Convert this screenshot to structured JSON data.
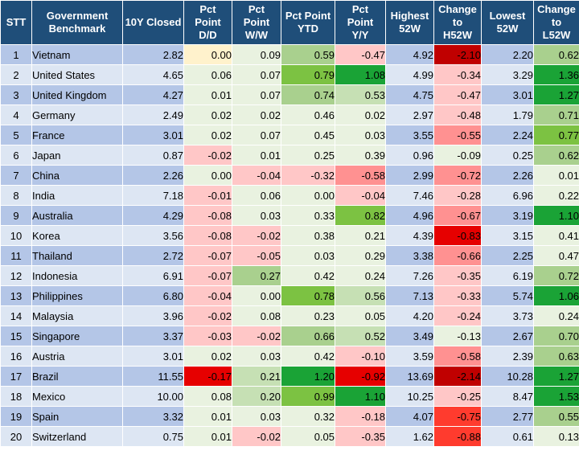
{
  "headers": {
    "stt": "STT",
    "benchmark_line1": "Government",
    "benchmark_line2": "Benchmark",
    "closed": "10Y Closed",
    "dd_line1": "Pct",
    "dd_line2": "Point",
    "dd_line3": "D/D",
    "ww_line1": "Pct",
    "ww_line2": "Point",
    "ww_line3": "W/W",
    "ytd_line1": "Pct Point",
    "ytd_line2": "YTD",
    "yy_line1": "Pct",
    "yy_line2": "Point",
    "yy_line3": "Y/Y",
    "h52_line1": "Highest",
    "h52_line2": "52W",
    "ch52_line1": "Change",
    "ch52_line2": "to",
    "ch52_line3": "H52W",
    "l52_line1": "Lowest",
    "l52_line2": "52W",
    "cl52_line1": "Change",
    "cl52_line2": "to",
    "cl52_line3": "L52W"
  },
  "rows": [
    {
      "stt": "1",
      "country": "Vietnam",
      "closed": "2.82",
      "dd": "0.00",
      "ww": "0.09",
      "ytd": "0.59",
      "yy": "-0.47",
      "h52": "4.92",
      "ch52": "-2.10",
      "l52": "2.20",
      "cl52": "0.62"
    },
    {
      "stt": "2",
      "country": "United States",
      "closed": "4.65",
      "dd": "0.06",
      "ww": "0.07",
      "ytd": "0.79",
      "yy": "1.08",
      "h52": "4.99",
      "ch52": "-0.34",
      "l52": "3.29",
      "cl52": "1.36"
    },
    {
      "stt": "3",
      "country": "United Kingdom",
      "closed": "4.27",
      "dd": "0.01",
      "ww": "0.07",
      "ytd": "0.74",
      "yy": "0.53",
      "h52": "4.75",
      "ch52": "-0.47",
      "l52": "3.01",
      "cl52": "1.27"
    },
    {
      "stt": "4",
      "country": "Germany",
      "closed": "2.49",
      "dd": "0.02",
      "ww": "0.02",
      "ytd": "0.46",
      "yy": "0.02",
      "h52": "2.97",
      "ch52": "-0.48",
      "l52": "1.79",
      "cl52": "0.71"
    },
    {
      "stt": "5",
      "country": "France",
      "closed": "3.01",
      "dd": "0.02",
      "ww": "0.07",
      "ytd": "0.45",
      "yy": "0.03",
      "h52": "3.55",
      "ch52": "-0.55",
      "l52": "2.24",
      "cl52": "0.77"
    },
    {
      "stt": "6",
      "country": "Japan",
      "closed": "0.87",
      "dd": "-0.02",
      "ww": "0.01",
      "ytd": "0.25",
      "yy": "0.39",
      "h52": "0.96",
      "ch52": "-0.09",
      "l52": "0.25",
      "cl52": "0.62"
    },
    {
      "stt": "7",
      "country": "China",
      "closed": "2.26",
      "dd": "0.00",
      "ww": "-0.04",
      "ytd": "-0.32",
      "yy": "-0.58",
      "h52": "2.99",
      "ch52": "-0.72",
      "l52": "2.26",
      "cl52": "0.01"
    },
    {
      "stt": "8",
      "country": "India",
      "closed": "7.18",
      "dd": "-0.01",
      "ww": "0.06",
      "ytd": "0.00",
      "yy": "-0.04",
      "h52": "7.46",
      "ch52": "-0.28",
      "l52": "6.96",
      "cl52": "0.22"
    },
    {
      "stt": "9",
      "country": "Australia",
      "closed": "4.29",
      "dd": "-0.08",
      "ww": "0.03",
      "ytd": "0.33",
      "yy": "0.82",
      "h52": "4.96",
      "ch52": "-0.67",
      "l52": "3.19",
      "cl52": "1.10"
    },
    {
      "stt": "10",
      "country": "Korea",
      "closed": "3.56",
      "dd": "-0.08",
      "ww": "-0.02",
      "ytd": "0.38",
      "yy": "0.21",
      "h52": "4.39",
      "ch52": "-0.83",
      "l52": "3.15",
      "cl52": "0.41"
    },
    {
      "stt": "11",
      "country": "Thailand",
      "closed": "2.72",
      "dd": "-0.07",
      "ww": "-0.05",
      "ytd": "0.03",
      "yy": "0.29",
      "h52": "3.38",
      "ch52": "-0.66",
      "l52": "2.25",
      "cl52": "0.47"
    },
    {
      "stt": "12",
      "country": "Indonesia",
      "closed": "6.91",
      "dd": "-0.07",
      "ww": "0.27",
      "ytd": "0.42",
      "yy": "0.24",
      "h52": "7.26",
      "ch52": "-0.35",
      "l52": "6.19",
      "cl52": "0.72"
    },
    {
      "stt": "13",
      "country": "Philippines",
      "closed": "6.80",
      "dd": "-0.04",
      "ww": "0.00",
      "ytd": "0.78",
      "yy": "0.56",
      "h52": "7.13",
      "ch52": "-0.33",
      "l52": "5.74",
      "cl52": "1.06"
    },
    {
      "stt": "14",
      "country": "Malaysia",
      "closed": "3.96",
      "dd": "-0.02",
      "ww": "0.08",
      "ytd": "0.23",
      "yy": "0.05",
      "h52": "4.20",
      "ch52": "-0.24",
      "l52": "3.73",
      "cl52": "0.24"
    },
    {
      "stt": "15",
      "country": "Singapore",
      "closed": "3.37",
      "dd": "-0.03",
      "ww": "-0.02",
      "ytd": "0.66",
      "yy": "0.52",
      "h52": "3.49",
      "ch52": "-0.13",
      "l52": "2.67",
      "cl52": "0.70"
    },
    {
      "stt": "16",
      "country": "Austria",
      "closed": "3.01",
      "dd": "0.02",
      "ww": "0.03",
      "ytd": "0.42",
      "yy": "-0.10",
      "h52": "3.59",
      "ch52": "-0.58",
      "l52": "2.39",
      "cl52": "0.63"
    },
    {
      "stt": "17",
      "country": "Brazil",
      "closed": "11.55",
      "dd": "-0.17",
      "ww": "0.21",
      "ytd": "1.20",
      "yy": "-0.92",
      "h52": "13.69",
      "ch52": "-2.14",
      "l52": "10.28",
      "cl52": "1.27"
    },
    {
      "stt": "18",
      "country": "Mexico",
      "closed": "10.00",
      "dd": "0.08",
      "ww": "0.20",
      "ytd": "0.99",
      "yy": "1.10",
      "h52": "10.25",
      "ch52": "-0.25",
      "l52": "8.47",
      "cl52": "1.53"
    },
    {
      "stt": "19",
      "country": "Spain",
      "closed": "3.32",
      "dd": "0.01",
      "ww": "0.03",
      "ytd": "0.32",
      "yy": "-0.18",
      "h52": "4.07",
      "ch52": "-0.75",
      "l52": "2.77",
      "cl52": "0.55"
    },
    {
      "stt": "20",
      "country": "Switzerland",
      "closed": "0.75",
      "dd": "0.01",
      "ww": "-0.02",
      "ytd": "0.05",
      "yy": "-0.35",
      "h52": "1.62",
      "ch52": "-0.88",
      "l52": "0.61",
      "cl52": "0.13"
    }
  ]
}
